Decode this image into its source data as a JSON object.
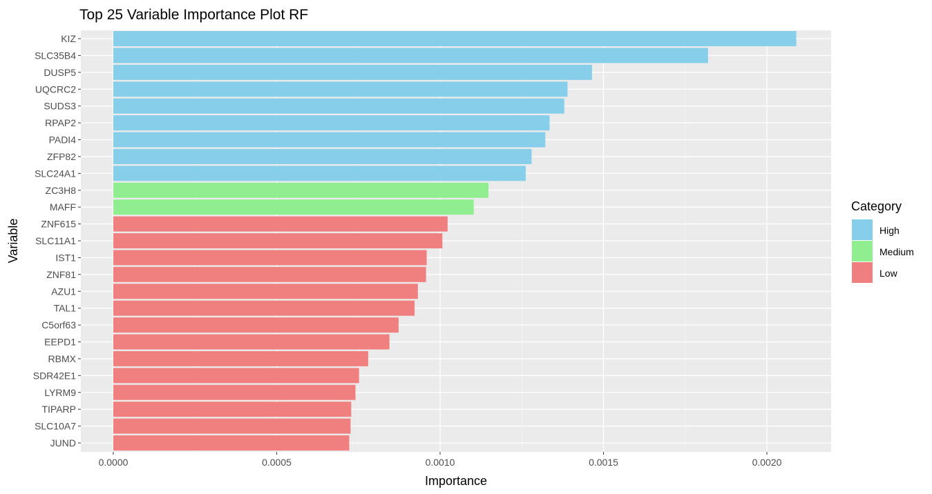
{
  "chart_data": {
    "type": "bar",
    "orientation": "horizontal",
    "title": "Top 25 Variable Importance Plot RF",
    "xlabel": "Importance",
    "ylabel": "Variable",
    "xlim": [
      -0.0001,
      0.00218
    ],
    "x_ticks": [
      0,
      0.0005,
      0.001,
      0.0015,
      0.002
    ],
    "x_tick_labels": [
      "0.0000",
      "0.0005",
      "0.0010",
      "0.0015",
      "0.0020"
    ],
    "grid": true,
    "legend": {
      "title": "Category",
      "position": "right",
      "entries": [
        {
          "name": "High",
          "color": "#87CEEB"
        },
        {
          "name": "Medium",
          "color": "#90EE90"
        },
        {
          "name": "Low",
          "color": "#F08080"
        }
      ]
    },
    "categories": [
      "KIZ",
      "SLC35B4",
      "DUSP5",
      "UQCRC2",
      "SUDS3",
      "RPAP2",
      "PADI4",
      "ZFP82",
      "SLC24A1",
      "ZC3H8",
      "MAFF",
      "ZNF615",
      "SLC11A1",
      "IST1",
      "ZNF81",
      "AZU1",
      "TAL1",
      "C5orf63",
      "EEPD1",
      "RBMX",
      "SDR42E1",
      "LYRM9",
      "TIPARP",
      "SLC10A7",
      "JUND"
    ],
    "values": [
      0.00209,
      0.00182,
      0.001465,
      0.00139,
      0.00138,
      0.001335,
      0.001322,
      0.00128,
      0.001262,
      0.001148,
      0.001103,
      0.001023,
      0.001007,
      0.000959,
      0.000957,
      0.000932,
      0.000922,
      0.000873,
      0.000845,
      0.00078,
      0.000752,
      0.000741,
      0.000728,
      0.000726,
      0.000722
    ],
    "bar_category": [
      "High",
      "High",
      "High",
      "High",
      "High",
      "High",
      "High",
      "High",
      "High",
      "Medium",
      "Medium",
      "Low",
      "Low",
      "Low",
      "Low",
      "Low",
      "Low",
      "Low",
      "Low",
      "Low",
      "Low",
      "Low",
      "Low",
      "Low",
      "Low"
    ]
  }
}
